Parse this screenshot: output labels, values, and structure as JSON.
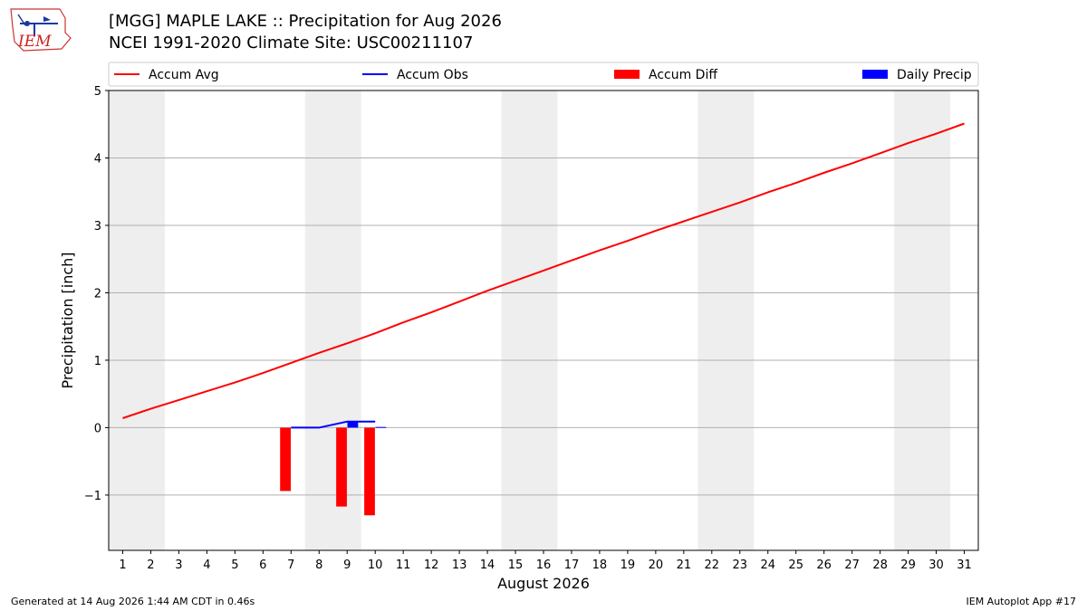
{
  "header": {
    "title_line_1": "[MGG] MAPLE LAKE :: Precipitation for Aug 2026",
    "title_line_2": "NCEI 1991-2020 Climate Site: USC00211107",
    "logo_text": "IEM"
  },
  "footer": {
    "generated": "Generated at 14 Aug 2026 1:44 AM CDT in 0.46s",
    "app": "IEM Autoplot App #17"
  },
  "colors": {
    "avg": "#ff0000",
    "obs": "#0000ff",
    "diff": "#ff0000",
    "daily": "#0000ff",
    "weekend": "#eeeeee",
    "grid": "#b0b0b0"
  },
  "chart_data": {
    "type": "bar",
    "title": "[MGG] MAPLE LAKE :: Precipitation for Aug 2026",
    "subtitle": "NCEI 1991-2020 Climate Site: USC00211107",
    "xlabel": "August 2026",
    "ylabel": "Precipitation [inch]",
    "xlim": [
      0.5,
      31.5
    ],
    "ylim": [
      -1.82,
      5
    ],
    "yticks": [
      -1,
      0,
      1,
      2,
      3,
      4,
      5
    ],
    "ytick_labels": [
      "−1",
      "0",
      "1",
      "2",
      "3",
      "4",
      "5"
    ],
    "x": [
      1,
      2,
      3,
      4,
      5,
      6,
      7,
      8,
      9,
      10,
      11,
      12,
      13,
      14,
      15,
      16,
      17,
      18,
      19,
      20,
      21,
      22,
      23,
      24,
      25,
      26,
      27,
      28,
      29,
      30,
      31
    ],
    "weekend_days": [
      [
        1,
        2
      ],
      [
        8,
        9
      ],
      [
        15,
        16
      ],
      [
        22,
        23
      ],
      [
        29,
        30
      ]
    ],
    "grid": "horizontal",
    "legend_position": "top",
    "legend": [
      "Accum Avg",
      "Accum Obs",
      "Accum Diff",
      "Daily Precip"
    ],
    "series": [
      {
        "name": "Accum Avg",
        "kind": "line",
        "color": "#ff0000",
        "values": [
          0.14,
          0.28,
          0.41,
          0.54,
          0.67,
          0.81,
          0.96,
          1.11,
          1.25,
          1.4,
          1.56,
          1.71,
          1.87,
          2.03,
          2.18,
          2.33,
          2.48,
          2.63,
          2.77,
          2.92,
          3.06,
          3.2,
          3.34,
          3.49,
          3.63,
          3.78,
          3.92,
          4.07,
          4.22,
          4.36,
          4.51
        ]
      },
      {
        "name": "Accum Obs",
        "kind": "line",
        "color": "#0000ff",
        "x": [
          7,
          8,
          9,
          10
        ],
        "values": [
          0.0,
          0.0,
          0.09,
          0.09
        ]
      },
      {
        "name": "Accum Diff",
        "kind": "bar",
        "offset": -0.2,
        "width": 0.38,
        "color": "#ff0000",
        "x": [
          7,
          9,
          10
        ],
        "values": [
          -0.94,
          -1.17,
          -1.3
        ]
      },
      {
        "name": "Daily Precip",
        "kind": "bar",
        "offset": 0.2,
        "width": 0.38,
        "color": "#0000ff",
        "x": [
          7,
          9,
          10
        ],
        "values": [
          0.01,
          0.08,
          0.01
        ]
      }
    ]
  }
}
